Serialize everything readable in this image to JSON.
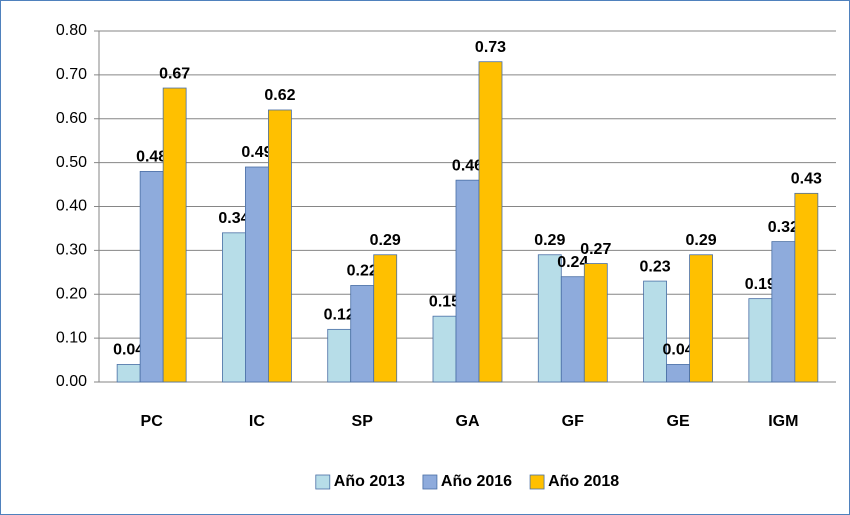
{
  "chart_data": {
    "type": "bar",
    "categories": [
      "PC",
      "IC",
      "SP",
      "GA",
      "GF",
      "GE",
      "IGM"
    ],
    "series": [
      {
        "name": "Año 2013",
        "color": "#b7dde8",
        "values": [
          0.04,
          0.34,
          0.12,
          0.15,
          0.29,
          0.23,
          0.19
        ]
      },
      {
        "name": "Año 2016",
        "color": "#8eabdc",
        "values": [
          0.48,
          0.49,
          0.22,
          0.46,
          0.24,
          0.04,
          0.32
        ]
      },
      {
        "name": "Año 2018",
        "color": "#ffc000",
        "values": [
          0.67,
          0.62,
          0.29,
          0.73,
          0.27,
          0.29,
          0.43
        ]
      }
    ],
    "ylim": [
      0,
      0.8
    ],
    "yticks": [
      {
        "value": 0,
        "label": "0.00"
      },
      {
        "value": 0.1,
        "label": "0.10"
      },
      {
        "value": 0.2,
        "label": "0.20"
      },
      {
        "value": 0.3,
        "label": "0.30"
      },
      {
        "value": 0.4,
        "label": "0.40"
      },
      {
        "value": 0.5,
        "label": "0.50"
      },
      {
        "value": 0.6,
        "label": "0.60"
      },
      {
        "value": 0.7,
        "label": "0.70"
      },
      {
        "value": 0.8,
        "label": "0.80"
      }
    ],
    "grid": true,
    "legend": "bottom"
  }
}
